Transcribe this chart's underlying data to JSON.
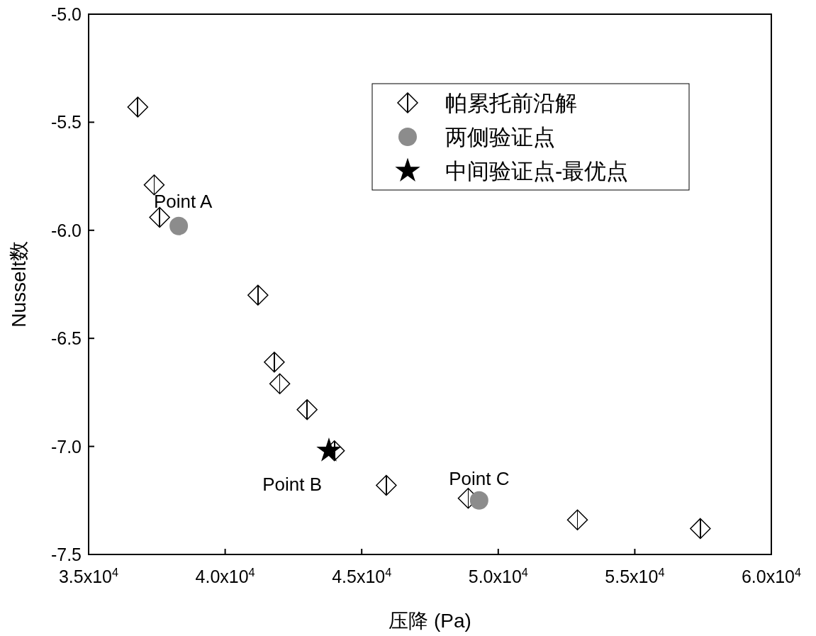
{
  "chart_data": {
    "type": "scatter",
    "xlabel": "压降 (Pa)",
    "ylabel": "Nusselt数",
    "xlim": [
      35000,
      60000
    ],
    "ylim": [
      -7.5,
      -5.0
    ],
    "xticks": [
      {
        "value": 35000,
        "label": "3.5x10$^{4}$"
      },
      {
        "value": 40000,
        "label": "4.0x10$^{4}$"
      },
      {
        "value": 45000,
        "label": "4.5x10$^{4}$"
      },
      {
        "value": 50000,
        "label": "5.0x10$^{4}$"
      },
      {
        "value": 55000,
        "label": "5.5x10$^{4}$"
      },
      {
        "value": 60000,
        "label": "6.0x10$^{4}$"
      }
    ],
    "yticks": [
      -7.5,
      {
        "value": -7,
        "label": "-7.0"
      },
      -6.5,
      {
        "value": -6,
        "label": "-6.0"
      },
      -5.5,
      {
        "value": -5,
        "label": "-5.0"
      }
    ],
    "grid": false,
    "legend": "top right",
    "series": [
      {
        "name": "帕累托前沿解",
        "color": "#000000",
        "marker": "diamond",
        "x": [
          36800,
          37400,
          37600,
          41200,
          41800,
          42000,
          43000,
          44000,
          45900,
          48900,
          52900,
          57400
        ],
        "values": [
          -5.43,
          -5.79,
          -5.94,
          -6.3,
          -6.61,
          -6.71,
          -6.83,
          -7.02,
          -7.18,
          -7.24,
          -7.34,
          -7.38
        ]
      },
      {
        "name": "两侧验证点",
        "color": "#8c8c8c",
        "marker": "circle",
        "x": [
          38300,
          49300
        ],
        "values": [
          -5.98,
          -7.25
        ]
      },
      {
        "name": "中间验证点-最优点",
        "color": "#000000",
        "marker": "star",
        "x": [
          43800
        ],
        "values": [
          -7.02
        ]
      }
    ],
    "annotations": [
      {
        "text": "Point A",
        "x": 38300,
        "y": -5.98
      },
      {
        "text": "Point B",
        "x": 43800,
        "y": -7.02
      },
      {
        "text": "Point C",
        "x": 49300,
        "y": -7.25
      }
    ]
  }
}
